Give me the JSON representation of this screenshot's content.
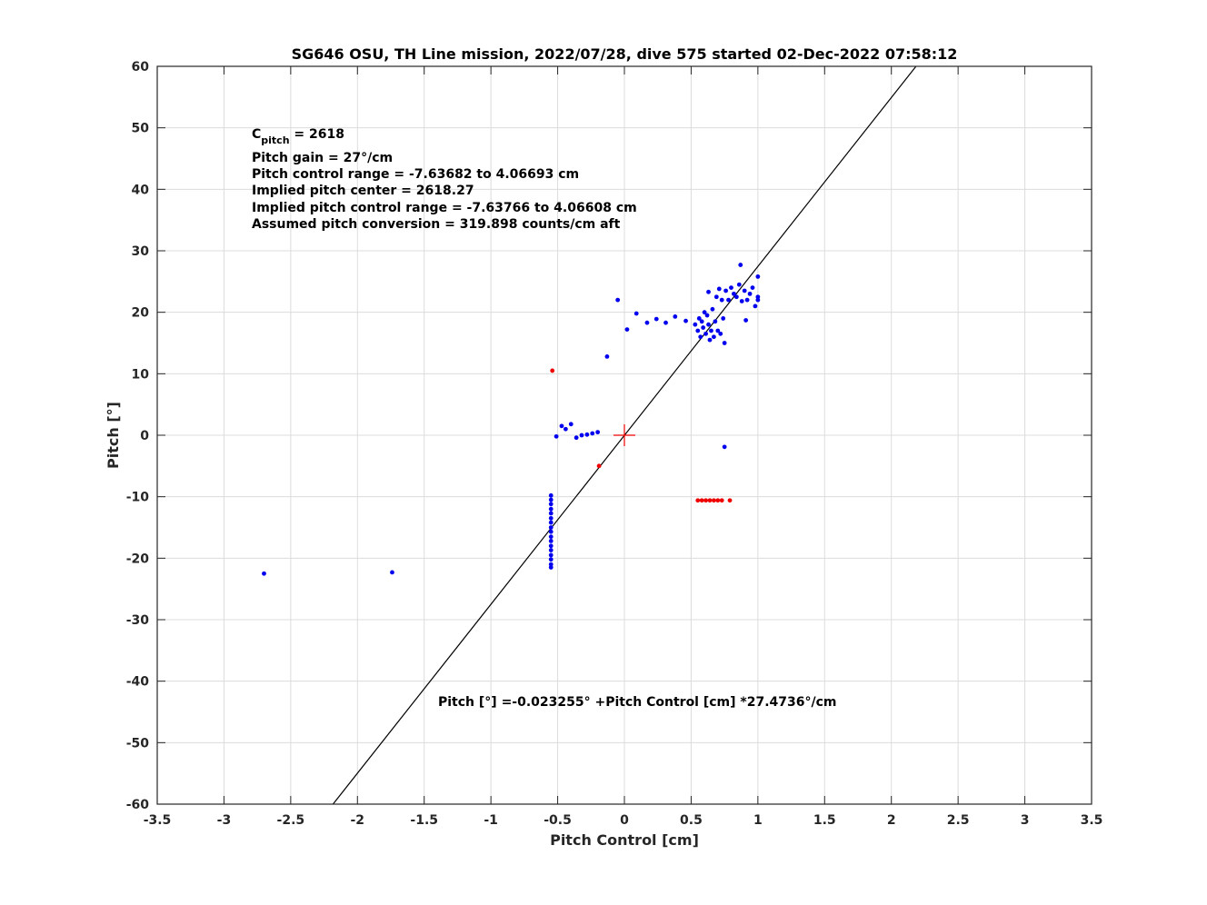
{
  "chart_data": {
    "type": "scatter",
    "title": "SG646 OSU, TH Line mission, 2022/07/28, dive 575 started 02-Dec-2022 07:58:12",
    "xlabel": "Pitch Control [cm]",
    "ylabel": "Pitch [°]",
    "xlim": [
      -3.5,
      3.5
    ],
    "ylim": [
      -60,
      60
    ],
    "xticks": [
      "-3.5",
      "-3",
      "-2.5",
      "-2",
      "-1.5",
      "-1",
      "-0.5",
      "0",
      "0.5",
      "1",
      "1.5",
      "2",
      "2.5",
      "3",
      "3.5"
    ],
    "yticks": [
      "60",
      "50",
      "40",
      "30",
      "20",
      "10",
      "0",
      "-10",
      "-20",
      "-30",
      "-40",
      "-50",
      "-60"
    ],
    "grid": true,
    "colors": {
      "used": "#0000ee",
      "excluded": "#ee0000",
      "fit": "#000000",
      "center": "#ee0000"
    },
    "annotations": {
      "c_pitch_main": "C",
      "c_pitch_sub": "pitch",
      "c_pitch_value": " = 2618",
      "gain": "Pitch gain = 27°/cm",
      "range": "Pitch control range = -7.63682 to 4.06693 cm",
      "center": "Implied pitch center = 2618.27",
      "implied_range": "Implied pitch control range = -7.63766 to 4.06608 cm",
      "conversion": "Assumed pitch conversion = 319.898 counts/cm aft",
      "equation": "Pitch [°] =-0.023255° +Pitch Control [cm] *27.4736°/cm"
    },
    "fit_line": {
      "intercept": -0.023255,
      "slope": 27.4736
    },
    "center_marker": {
      "x": 0,
      "y": 0
    },
    "series": [
      {
        "color": "blue",
        "points": [
          [
            -2.7,
            -22.5
          ],
          [
            -1.74,
            -22.3
          ],
          [
            -0.55,
            -9.8
          ],
          [
            -0.55,
            -10.5
          ],
          [
            -0.55,
            -11.2
          ],
          [
            -0.55,
            -12.0
          ],
          [
            -0.55,
            -12.7
          ],
          [
            -0.55,
            -13.5
          ],
          [
            -0.55,
            -14.2
          ],
          [
            -0.55,
            -15.0
          ],
          [
            -0.55,
            -15.7
          ],
          [
            -0.55,
            -16.5
          ],
          [
            -0.55,
            -17.2
          ],
          [
            -0.55,
            -18.0
          ],
          [
            -0.55,
            -18.7
          ],
          [
            -0.55,
            -19.5
          ],
          [
            -0.55,
            -20.2
          ],
          [
            -0.55,
            -21.0
          ],
          [
            -0.55,
            -21.5
          ],
          [
            -0.51,
            -0.2
          ],
          [
            -0.47,
            1.5
          ],
          [
            -0.44,
            1.0
          ],
          [
            -0.4,
            1.8
          ],
          [
            -0.36,
            -0.4
          ],
          [
            -0.32,
            0.0
          ],
          [
            -0.28,
            0.1
          ],
          [
            -0.24,
            0.3
          ],
          [
            -0.2,
            0.5
          ],
          [
            -0.13,
            12.8
          ],
          [
            -0.05,
            22.0
          ],
          [
            0.02,
            17.2
          ],
          [
            0.09,
            19.8
          ],
          [
            0.17,
            18.3
          ],
          [
            0.24,
            18.9
          ],
          [
            0.31,
            18.3
          ],
          [
            0.38,
            19.3
          ],
          [
            0.46,
            18.6
          ],
          [
            0.75,
            -1.9
          ],
          [
            0.53,
            18.0
          ],
          [
            0.55,
            17.0
          ],
          [
            0.56,
            19.0
          ],
          [
            0.57,
            16.0
          ],
          [
            0.58,
            18.5
          ],
          [
            0.59,
            17.5
          ],
          [
            0.6,
            20.0
          ],
          [
            0.61,
            16.5
          ],
          [
            0.62,
            19.5
          ],
          [
            0.63,
            18.0
          ],
          [
            0.63,
            23.3
          ],
          [
            0.64,
            15.5
          ],
          [
            0.65,
            17.0
          ],
          [
            0.66,
            20.5
          ],
          [
            0.67,
            16.0
          ],
          [
            0.68,
            18.5
          ],
          [
            0.69,
            22.5
          ],
          [
            0.7,
            17.0
          ],
          [
            0.71,
            23.8
          ],
          [
            0.72,
            16.5
          ],
          [
            0.73,
            22.0
          ],
          [
            0.74,
            19.0
          ],
          [
            0.75,
            15.0
          ],
          [
            0.76,
            23.5
          ],
          [
            0.78,
            22.0
          ],
          [
            0.8,
            24.0
          ],
          [
            0.82,
            23.0
          ],
          [
            0.84,
            22.5
          ],
          [
            0.86,
            24.5
          ],
          [
            0.87,
            27.7
          ],
          [
            0.88,
            21.8
          ],
          [
            0.9,
            23.5
          ],
          [
            0.91,
            18.7
          ],
          [
            0.92,
            22.0
          ],
          [
            0.94,
            23.0
          ],
          [
            0.96,
            24.0
          ],
          [
            0.98,
            21.0
          ],
          [
            1.0,
            22.0
          ],
          [
            1.0,
            25.8
          ],
          [
            1.0,
            22.5
          ]
        ]
      },
      {
        "color": "red",
        "points": [
          [
            -0.54,
            10.5
          ],
          [
            -0.19,
            -5.0
          ],
          [
            0.55,
            -10.6
          ],
          [
            0.58,
            -10.6
          ],
          [
            0.61,
            -10.6
          ],
          [
            0.64,
            -10.6
          ],
          [
            0.67,
            -10.6
          ],
          [
            0.7,
            -10.6
          ],
          [
            0.73,
            -10.6
          ],
          [
            0.79,
            -10.6
          ]
        ]
      }
    ]
  }
}
